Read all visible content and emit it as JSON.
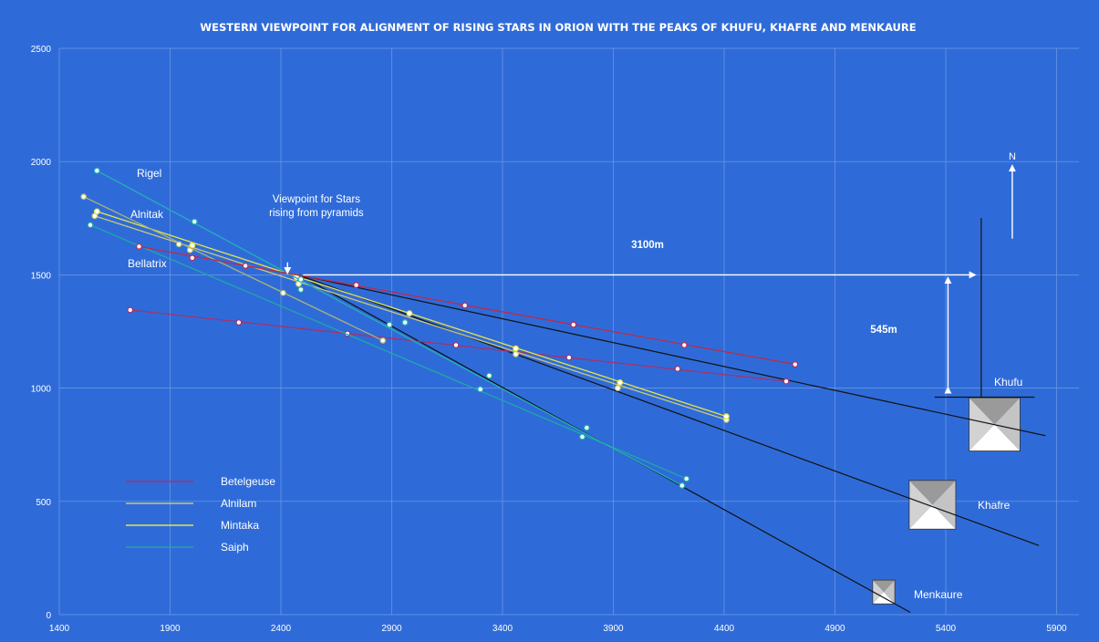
{
  "chart_data": {
    "type": "scatter",
    "title": "WESTERN VIEWPOINT FOR ALIGNMENT OF RISING STARS IN ORION WITH THE PEAKS OF KHUFU,  KHAFRE AND MENKAURE",
    "xlim": [
      1400,
      6000
    ],
    "ylim": [
      0,
      2500
    ],
    "x_ticks": [
      "1400",
      "1900",
      "2400",
      "2900",
      "3400",
      "3900",
      "4400",
      "4900",
      "5400",
      "5900"
    ],
    "y_ticks": [
      "0",
      "500",
      "1000",
      "1500",
      "2000",
      "2500"
    ],
    "grid": true,
    "legend_position": "bottom-left",
    "colors": {
      "background": "#2f6bd8",
      "grid": "#6f9be6",
      "betelgeuse": "#a8306b",
      "alnilam": "#c8c878",
      "mintaka": "#e4e44a",
      "saiph": "#1ea8a8",
      "rigel": "#22b0b8",
      "alnitak": "#a8b478",
      "bellatrix": "#c02a48",
      "sightline": "#111111",
      "arrow": "#ffffff"
    },
    "series": [
      {
        "name": "Betelgeuse",
        "key": "betelgeuse",
        "in_legend": true,
        "x": [
          1720,
          2210,
          2700,
          3190,
          3700,
          4190,
          4680
        ],
        "y": [
          1345,
          1290,
          1240,
          1190,
          1135,
          1085,
          1030
        ]
      },
      {
        "name": "Alnilam",
        "key": "alnilam",
        "in_legend": true,
        "x": [
          1560,
          1990,
          2480,
          2960,
          3460,
          3920,
          4410
        ],
        "y": [
          1760,
          1610,
          1460,
          1290,
          1150,
          1000,
          860
        ]
      },
      {
        "name": "Mintaka",
        "key": "mintaka",
        "in_legend": true,
        "x": [
          1570,
          2000,
          2470,
          2980,
          3460,
          3930,
          4410
        ],
        "y": [
          1780,
          1630,
          1490,
          1330,
          1175,
          1025,
          875
        ]
      },
      {
        "name": "Saiph",
        "key": "saiph",
        "in_legend": true,
        "x": [
          1540,
          2490,
          2890,
          3340,
          3780,
          4230
        ],
        "y": [
          1720,
          1435,
          1280,
          1055,
          825,
          600
        ]
      },
      {
        "name": "Rigel",
        "key": "rigel",
        "in_legend": false,
        "x": [
          1570,
          2010,
          2490,
          2960,
          3300,
          3760,
          4210
        ],
        "y": [
          1960,
          1735,
          1480,
          1290,
          995,
          785,
          570
        ]
      },
      {
        "name": "Alnitak",
        "key": "alnitak",
        "in_legend": false,
        "x": [
          1510,
          1940,
          2410,
          2860
        ],
        "y": [
          1845,
          1635,
          1420,
          1210
        ]
      },
      {
        "name": "Bellatrix",
        "key": "bellatrix",
        "in_legend": false,
        "x": [
          1760,
          2000,
          2240,
          2740,
          3230,
          3720,
          4220,
          4720
        ],
        "y": [
          1625,
          1575,
          1540,
          1455,
          1365,
          1280,
          1190,
          1105
        ]
      }
    ],
    "sight_lines": [
      {
        "target": "Khufu",
        "from": [
          2480,
          1500
        ],
        "to": [
          5850,
          790
        ]
      },
      {
        "target": "Khafre",
        "from": [
          2480,
          1500
        ],
        "to": [
          5820,
          305
        ]
      },
      {
        "target": "Menkaure",
        "from": [
          2480,
          1500
        ],
        "to": [
          5240,
          10
        ]
      }
    ],
    "khufu_vertical": {
      "from": [
        5560,
        1750
      ],
      "to": [
        5560,
        960
      ]
    },
    "khufu_base": {
      "from": [
        5350,
        960
      ],
      "to": [
        5800,
        960
      ]
    },
    "pyramids": [
      {
        "name": "Khufu",
        "cx": 5620,
        "cy": 840,
        "w": 230,
        "h": 235
      },
      {
        "name": "Khafre",
        "cx": 5340,
        "cy": 485,
        "w": 210,
        "h": 215
      },
      {
        "name": "Menkaure",
        "cx": 5120,
        "cy": 100,
        "w": 100,
        "h": 105
      }
    ],
    "annotations": {
      "viewpoint": "Viewpoint for Stars\nrising from pyramids",
      "distance_horizontal": "3100m",
      "distance_vertical": "545m",
      "north": "N",
      "khufu": "Khufu",
      "khafre": "Khafre",
      "menkaure": "Menkaure",
      "rigel": "Rigel",
      "alnitak": "Alnitak",
      "bellatrix": "Bellatrix"
    }
  }
}
